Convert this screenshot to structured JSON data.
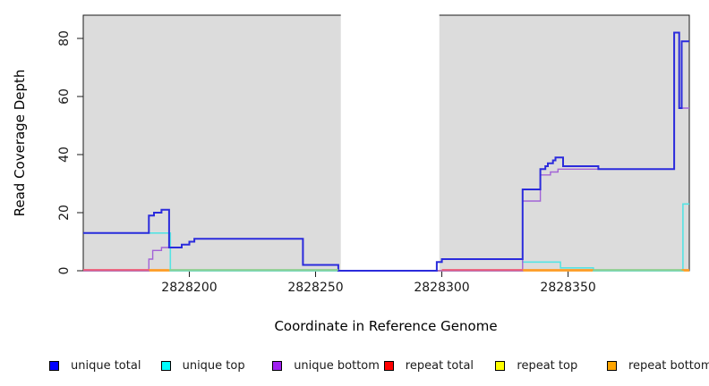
{
  "chart_data": {
    "type": "line",
    "subtype": "step-after-coverage",
    "title": "",
    "xlabel": "Coordinate in Reference Genome",
    "ylabel": "Read Coverage Depth",
    "xlim": [
      2828158,
      2828398
    ],
    "ylim": [
      0,
      88
    ],
    "grid": false,
    "x_ticks": [
      2828200,
      2828250,
      2828300,
      2828350
    ],
    "y_ticks": [
      0,
      20,
      40,
      60,
      80
    ],
    "background": {
      "masked_color": "#dcdcdc",
      "unmasked_color": "#ffffff",
      "unmasked_region": [
        2828260,
        2828299
      ]
    },
    "series": [
      {
        "name": "repeat total",
        "color": "#ef5a76",
        "width": 1.6,
        "points": [
          [
            2828158,
            0
          ],
          [
            2828398,
            0
          ]
        ]
      },
      {
        "name": "repeat top",
        "color": "#f2e93c",
        "width": 1.6,
        "points": [
          [
            2828158,
            0
          ],
          [
            2828398,
            0
          ]
        ]
      },
      {
        "name": "repeat bottom",
        "color": "#ff9d26",
        "width": 1.6,
        "points": [
          [
            2828158,
            0
          ],
          [
            2828398,
            0
          ]
        ]
      },
      {
        "name": "unique top",
        "color": "#55e3e3",
        "width": 1.6,
        "points": [
          [
            2828158,
            13
          ],
          [
            2828192.5,
            0
          ],
          [
            2828298,
            3
          ],
          [
            2828300,
            4
          ],
          [
            2828332,
            3
          ],
          [
            2828347,
            1
          ],
          [
            2828360,
            0
          ],
          [
            2828395.5,
            23
          ],
          [
            2828398,
            23
          ]
        ]
      },
      {
        "name": "unique bottom",
        "color": "#a263d6",
        "width": 1.4,
        "points": [
          [
            2828158,
            0
          ],
          [
            2828184,
            4
          ],
          [
            2828185.5,
            7
          ],
          [
            2828189,
            8
          ],
          [
            2828197,
            9
          ],
          [
            2828200,
            10
          ],
          [
            2828202,
            11
          ],
          [
            2828245,
            2
          ],
          [
            2828259,
            0
          ],
          [
            2828332,
            24
          ],
          [
            2828339,
            33
          ],
          [
            2828343,
            34
          ],
          [
            2828346,
            35
          ],
          [
            2828392,
            82
          ],
          [
            2828394,
            56
          ],
          [
            2828398,
            56
          ]
        ]
      },
      {
        "name": "unique total",
        "color": "#2b2bdc",
        "width": 2,
        "points": [
          [
            2828158,
            13
          ],
          [
            2828184,
            19
          ],
          [
            2828186,
            20
          ],
          [
            2828189,
            21
          ],
          [
            2828192,
            8
          ],
          [
            2828197,
            9
          ],
          [
            2828200,
            10
          ],
          [
            2828202,
            11
          ],
          [
            2828245,
            2
          ],
          [
            2828259,
            0
          ],
          [
            2828298,
            3
          ],
          [
            2828300,
            4
          ],
          [
            2828332,
            28
          ],
          [
            2828339,
            35
          ],
          [
            2828341,
            36
          ],
          [
            2828342,
            37
          ],
          [
            2828344,
            38
          ],
          [
            2828345,
            39
          ],
          [
            2828348,
            36
          ],
          [
            2828362,
            35
          ],
          [
            2828392,
            82
          ],
          [
            2828394,
            56
          ],
          [
            2828395,
            79
          ],
          [
            2828398,
            79
          ]
        ]
      }
    ],
    "baseline_segments": [
      {
        "x1": 2828158,
        "x2": 2828184,
        "color": "#ef5a76"
      },
      {
        "x1": 2828184,
        "x2": 2828192,
        "color": "#ff9d26"
      },
      {
        "x1": 2828192,
        "x2": 2828259,
        "color": "#8ecf8e"
      },
      {
        "x1": 2828300,
        "x2": 2828332,
        "color": "#ef5a76"
      },
      {
        "x1": 2828332,
        "x2": 2828360,
        "color": "#ff9d26"
      },
      {
        "x1": 2828360,
        "x2": 2828395,
        "color": "#8ecf8e"
      },
      {
        "x1": 2828395,
        "x2": 2828398,
        "color": "#ff9d26"
      }
    ],
    "legend": {
      "position": "bottom",
      "entries": [
        {
          "label": "unique total",
          "color": "#0000ff"
        },
        {
          "label": "unique top",
          "color": "#00ffff"
        },
        {
          "label": "unique bottom",
          "color": "#a020f0"
        },
        {
          "label": "repeat total",
          "color": "#ff0000"
        },
        {
          "label": "repeat top",
          "color": "#ffff00"
        },
        {
          "label": "repeat bottom",
          "color": "#ffa500"
        }
      ]
    }
  },
  "layout_colors": {
    "axis_line": "#1a1a1a",
    "tick_text": "#1a1a1a"
  }
}
